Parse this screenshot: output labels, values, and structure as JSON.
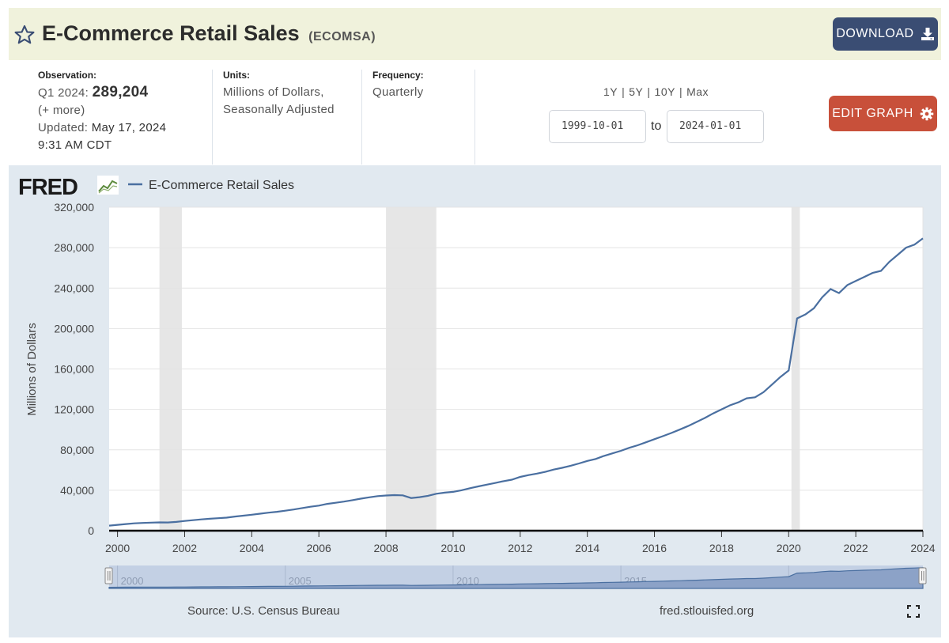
{
  "header": {
    "title": "E-Commerce Retail Sales",
    "code": "(ECOMSA)",
    "download_label": "DOWNLOAD"
  },
  "observation": {
    "label": "Observation:",
    "period": "Q1 2024:",
    "value": "289,204",
    "more": "(+ more)",
    "updated_label": "Updated:",
    "updated_date": "May 17, 2024",
    "updated_time": "9:31 AM CDT"
  },
  "units": {
    "label": "Units:",
    "line1": "Millions of Dollars,",
    "line2": "Seasonally Adjusted"
  },
  "frequency": {
    "label": "Frequency:",
    "value": "Quarterly"
  },
  "range": {
    "options": [
      "1Y",
      "5Y",
      "10Y",
      "Max"
    ],
    "start": "1999-10-01",
    "to_label": "to",
    "end": "2024-01-01"
  },
  "edit_label": "EDIT GRAPH",
  "footer": {
    "source": "Source: U.S. Census Bureau",
    "site": "fred.stlouisfed.org"
  },
  "colors": {
    "series": "#4a6fa0",
    "recession": "#e6e6e6",
    "header_bg": "#f0f2dc",
    "download_btn": "#3a4d73",
    "edit_btn": "#c8503a",
    "chart_bg": "#e1e9f0"
  },
  "chart_data": {
    "type": "line",
    "title": "",
    "logo": "FRED",
    "legend": "E-Commerce Retail Sales",
    "ylabel": "Millions of Dollars",
    "xlabel": "",
    "xlim": [
      1999.75,
      2024.0
    ],
    "ylim": [
      0,
      320000
    ],
    "yticks": [
      0,
      40000,
      80000,
      120000,
      160000,
      200000,
      240000,
      280000,
      320000
    ],
    "ytick_labels": [
      "0",
      "40,000",
      "80,000",
      "120,000",
      "160,000",
      "200,000",
      "240,000",
      "280,000",
      "320,000"
    ],
    "xticks": [
      2000,
      2002,
      2004,
      2006,
      2008,
      2010,
      2012,
      2014,
      2016,
      2018,
      2020,
      2022,
      2024
    ],
    "navigator_labels": [
      "2000",
      "2005",
      "2010",
      "2015",
      "2020"
    ],
    "grid": true,
    "recessions": [
      [
        2001.25,
        2001.917
      ],
      [
        2008.0,
        2009.5
      ],
      [
        2020.083,
        2020.333
      ]
    ],
    "series": [
      {
        "name": "E-Commerce Retail Sales",
        "x": [
          1999.75,
          2000.0,
          2000.25,
          2000.5,
          2000.75,
          2001.0,
          2001.25,
          2001.5,
          2001.75,
          2002.0,
          2002.25,
          2002.5,
          2002.75,
          2003.0,
          2003.25,
          2003.5,
          2003.75,
          2004.0,
          2004.25,
          2004.5,
          2004.75,
          2005.0,
          2005.25,
          2005.5,
          2005.75,
          2006.0,
          2006.25,
          2006.5,
          2006.75,
          2007.0,
          2007.25,
          2007.5,
          2007.75,
          2008.0,
          2008.25,
          2008.5,
          2008.75,
          2009.0,
          2009.25,
          2009.5,
          2009.75,
          2010.0,
          2010.25,
          2010.5,
          2010.75,
          2011.0,
          2011.25,
          2011.5,
          2011.75,
          2012.0,
          2012.25,
          2012.5,
          2012.75,
          2013.0,
          2013.25,
          2013.5,
          2013.75,
          2014.0,
          2014.25,
          2014.5,
          2014.75,
          2015.0,
          2015.25,
          2015.5,
          2015.75,
          2016.0,
          2016.25,
          2016.5,
          2016.75,
          2017.0,
          2017.25,
          2017.5,
          2017.75,
          2018.0,
          2018.25,
          2018.5,
          2018.75,
          2019.0,
          2019.25,
          2019.5,
          2019.75,
          2020.0,
          2020.25,
          2020.5,
          2020.75,
          2021.0,
          2021.25,
          2021.5,
          2021.75,
          2022.0,
          2022.25,
          2022.5,
          2022.75,
          2023.0,
          2023.25,
          2023.5,
          2023.75,
          2024.0
        ],
        "y": [
          5000,
          5800,
          6600,
          7300,
          7700,
          8000,
          8200,
          8100,
          8700,
          9600,
          10400,
          11200,
          11800,
          12400,
          12900,
          14000,
          14900,
          15800,
          16800,
          17800,
          18700,
          19800,
          21000,
          22400,
          23700,
          24800,
          26500,
          27600,
          28800,
          30200,
          31700,
          33000,
          34200,
          34800,
          35200,
          35000,
          32300,
          33200,
          34500,
          36500,
          37600,
          38400,
          40000,
          42000,
          43800,
          45500,
          47200,
          49000,
          50500,
          53200,
          55000,
          56500,
          58200,
          60500,
          62200,
          64200,
          66500,
          69000,
          71000,
          74000,
          76500,
          79000,
          82000,
          84500,
          87500,
          90500,
          93500,
          96600,
          100000,
          103500,
          107500,
          111500,
          116000,
          120000,
          124000,
          127000,
          131000,
          132000,
          137000,
          144500,
          152000,
          158500,
          210000,
          214000,
          220000,
          231000,
          239000,
          235000,
          243000,
          247000,
          251000,
          255000,
          257000,
          266000,
          273000,
          280000,
          283000,
          289204
        ]
      }
    ]
  }
}
